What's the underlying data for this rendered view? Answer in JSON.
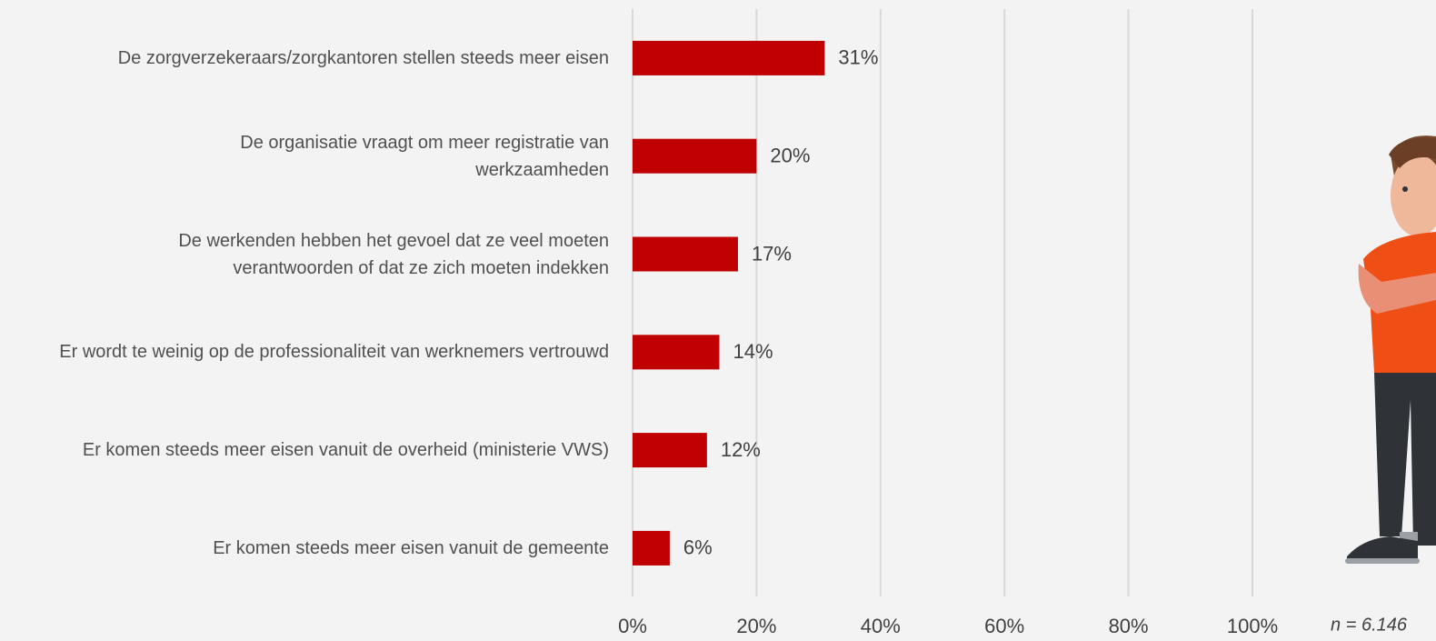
{
  "chart_data": {
    "type": "hbar",
    "categories": [
      "De zorgverzekeraars/zorgkantoren stellen steeds meer eisen",
      "De organisatie vraagt om meer registratie van werkzaamheden",
      "De werkenden hebben het gevoel dat ze veel moeten verantwoorden of dat ze zich moeten indekken",
      "Er wordt te weinig op de professionaliteit van werknemers vertrouwd",
      "Er komen steeds meer eisen vanuit de overheid (ministerie VWS)",
      "Er komen steeds meer eisen vanuit de gemeente"
    ],
    "values": [
      31,
      20,
      17,
      14,
      12,
      6
    ],
    "value_labels": [
      "31%",
      "20%",
      "17%",
      "14%",
      "12%",
      "6%"
    ],
    "color": "#c00000",
    "xlim": [
      0,
      100
    ],
    "xticks": [
      {
        "value": 0,
        "label": "0%"
      },
      {
        "value": 20,
        "label": "20%"
      },
      {
        "value": 40,
        "label": "40%"
      },
      {
        "value": 60,
        "label": "60%"
      },
      {
        "value": 80,
        "label": "80%"
      },
      {
        "value": 100,
        "label": "100%"
      }
    ],
    "grid": true,
    "note": "n = 6.146"
  }
}
